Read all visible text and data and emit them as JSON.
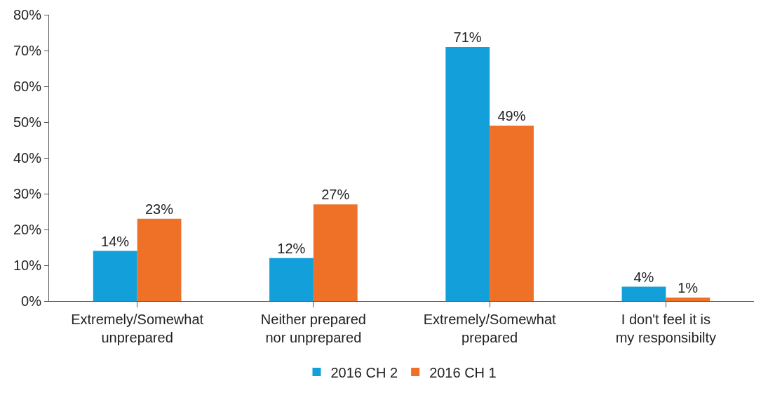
{
  "chart_data": {
    "type": "bar",
    "categories": [
      "Extremely/Somewhat\nunprepared",
      "Neither prepared\nnor unprepared",
      "Extremely/Somewhat\nprepared",
      "I don't feel it is\nmy responsibilty"
    ],
    "series": [
      {
        "name": "2016 CH 2",
        "color": "#139fda",
        "values": [
          14,
          12,
          71,
          4
        ],
        "value_labels": [
          "14%",
          "12%",
          "71%",
          "4%"
        ]
      },
      {
        "name": "2016 CH 1",
        "color": "#ee7127",
        "values": [
          23,
          27,
          49,
          1
        ],
        "value_labels": [
          "23%",
          "27%",
          "49%",
          "1%"
        ]
      }
    ],
    "ylim": [
      0,
      80
    ],
    "yticks": [
      {
        "value": 0,
        "label": "0%"
      },
      {
        "value": 10,
        "label": "10%"
      },
      {
        "value": 20,
        "label": "20%"
      },
      {
        "value": 30,
        "label": "30%"
      },
      {
        "value": 40,
        "label": "40%"
      },
      {
        "value": 50,
        "label": "50%"
      },
      {
        "value": 60,
        "label": "60%"
      },
      {
        "value": 70,
        "label": "70%"
      },
      {
        "value": 80,
        "label": "80%"
      }
    ],
    "grid": false,
    "legend": "bottom"
  }
}
